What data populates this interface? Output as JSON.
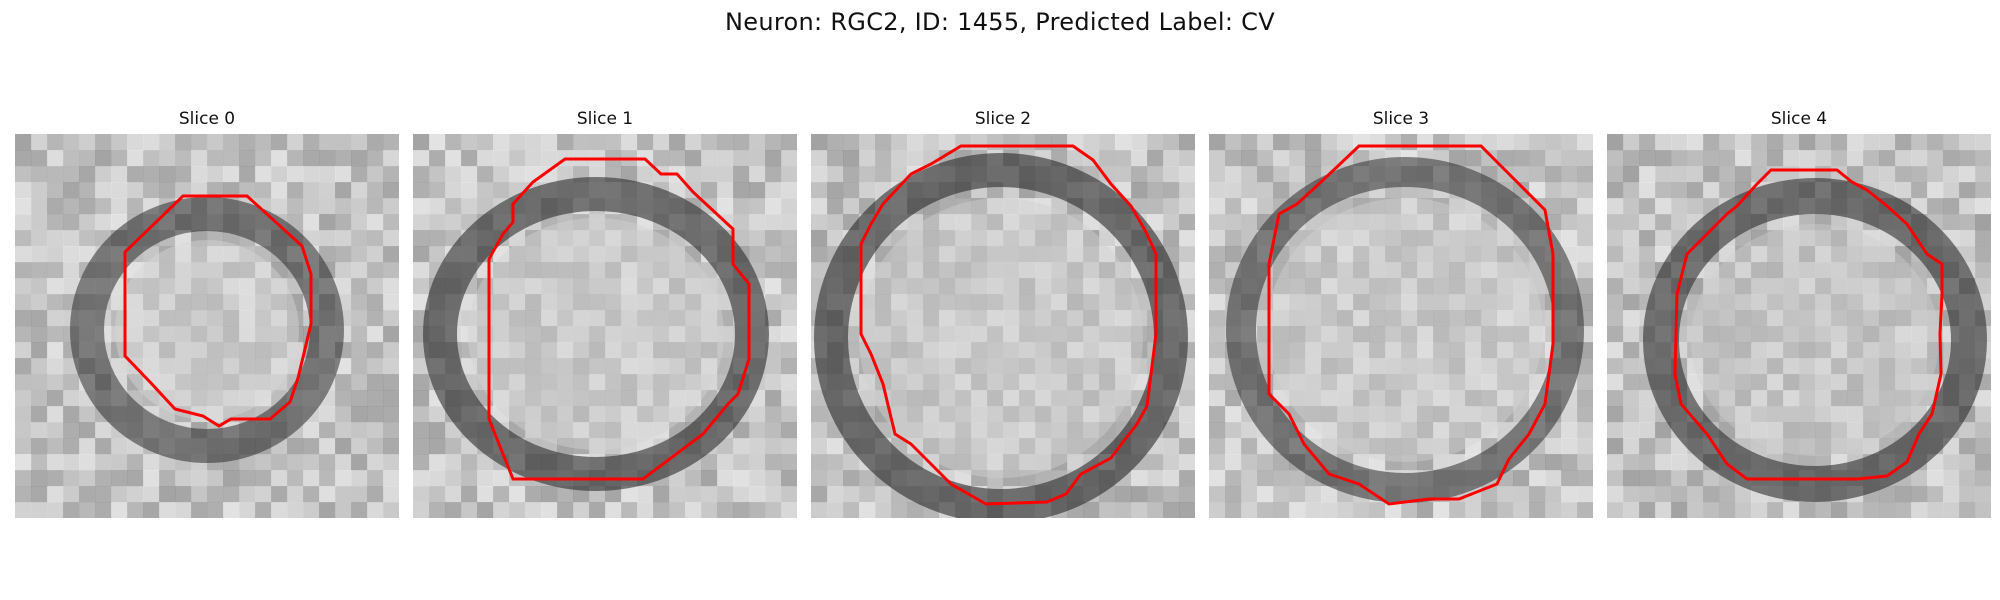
{
  "figure": {
    "title": "Neuron: RGC2, ID: 1455, Predicted Label: CV"
  },
  "panels": [
    {
      "title": "Slice 0"
    },
    {
      "title": "Slice 1"
    },
    {
      "title": "Slice 2"
    },
    {
      "title": "Slice 3"
    },
    {
      "title": "Slice 4"
    }
  ],
  "colors": {
    "contour": "#ff0000"
  }
}
